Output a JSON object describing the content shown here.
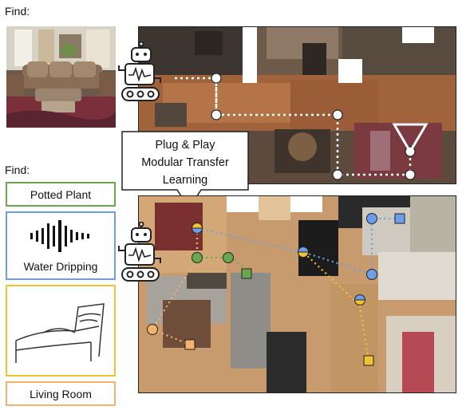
{
  "top": {
    "find_label": "Find:",
    "photo_icon": "living-room-photo"
  },
  "bottom": {
    "find_label": "Find:",
    "goals": [
      {
        "label": "Potted Plant",
        "color": "#6aa84f"
      },
      {
        "label": "Water Dripping",
        "color": "#6d9eeb",
        "icon": "audio-waveform-icon"
      },
      {
        "label": "",
        "color": "#f1c232",
        "icon": "bed-sketch-icon"
      },
      {
        "label": "Living Room",
        "color": "#f6b26b"
      }
    ]
  },
  "callout": {
    "lines": [
      "Plug & Play",
      "Modular Transfer",
      "Learning"
    ]
  },
  "colors": {
    "green_path": "#6aa84f",
    "blue_path": "#6d9eeb",
    "yellow_path": "#f1c232",
    "orange_path": "#f6b26b",
    "white_path": "#ffffff"
  },
  "icons": [
    "robot-icon",
    "robot-icon",
    "camera-cone-icon"
  ]
}
